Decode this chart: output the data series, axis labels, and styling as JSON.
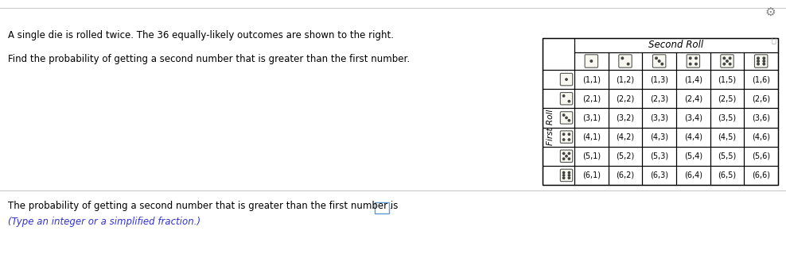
{
  "text_line1": "A single die is rolled twice. The 36 equally-likely outcomes are shown to the right.",
  "text_line2": "Find the probability of getting a second number that is greater than the first number.",
  "bottom_text1": "The probability of getting a second number that is greater than the first number is",
  "bottom_text2": "(Type an integer or a simplified fraction.)",
  "second_roll_label": "Second Roll",
  "first_roll_label": "First Roll",
  "table_rows": [
    [
      "(1,1)",
      "(1,2)",
      "(1,3)",
      "(1,4)",
      "(1,5)",
      "(1,6)"
    ],
    [
      "(2,1)",
      "(2,2)",
      "(2,3)",
      "(2,4)",
      "(2,5)",
      "(2,6)"
    ],
    [
      "(3,1)",
      "(3,2)",
      "(3,3)",
      "(3,4)",
      "(3,5)",
      "(3,6)"
    ],
    [
      "(4,1)",
      "(4,2)",
      "(4,3)",
      "(4,4)",
      "(4,5)",
      "(4,6)"
    ],
    [
      "(5,1)",
      "(5,2)",
      "(5,3)",
      "(5,4)",
      "(5,5)",
      "(5,6)"
    ],
    [
      "(6,1)",
      "(6,2)",
      "(6,3)",
      "(6,4)",
      "(6,5)",
      "(6,6)"
    ]
  ],
  "bg_color": "#ffffff",
  "text_color": "#000000",
  "separator_color": "#cccccc",
  "answer_box_color": "#5b9bd5",
  "bottom_text2_color": "#3333cc",
  "font_size_text": 8.5,
  "font_size_table_data": 7.0,
  "font_size_header": 8.5,
  "font_size_first_roll": 7.5,
  "gear_color": "#888888"
}
